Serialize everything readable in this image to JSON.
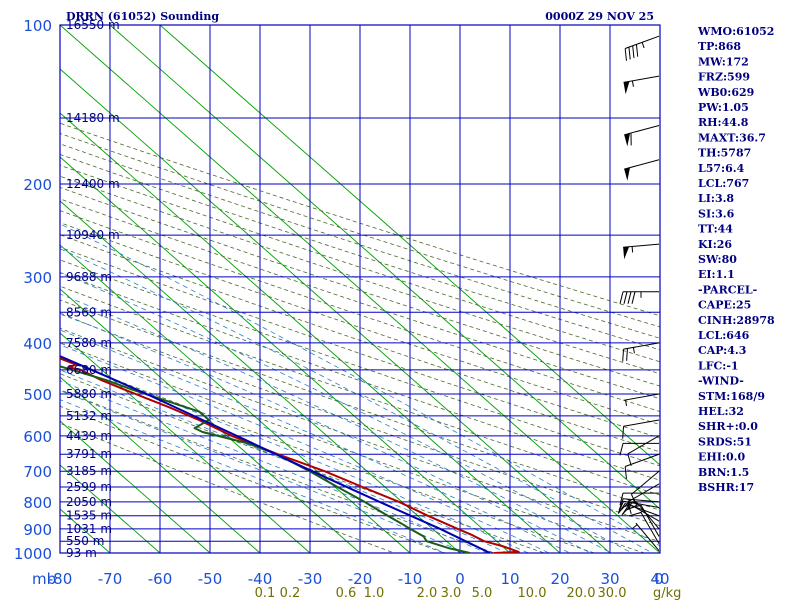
{
  "chart_data": {
    "type": "skew-t",
    "title": "DRRN (61052) Sounding",
    "timestamp": "0000Z 29 NOV 25",
    "pressure_levels": [
      100,
      200,
      300,
      400,
      500,
      600,
      700,
      800,
      900,
      1000
    ],
    "pressure_labels": [
      "100",
      "200",
      "300",
      "400",
      "500",
      "600",
      "700",
      "800",
      "900",
      "1000"
    ],
    "pressure_unit": "mb",
    "height_labels": [
      {
        "p": 100,
        "label": "16550 m"
      },
      {
        "p": 150,
        "label": "14180 m"
      },
      {
        "p": 200,
        "label": "12400 m"
      },
      {
        "p": 250,
        "label": "10940 m"
      },
      {
        "p": 300,
        "label": "9688 m"
      },
      {
        "p": 350,
        "label": "8569 m"
      },
      {
        "p": 400,
        "label": "7580 m"
      },
      {
        "p": 450,
        "label": "6680 m"
      },
      {
        "p": 500,
        "label": "5880 m"
      },
      {
        "p": 550,
        "label": "5132 m"
      },
      {
        "p": 600,
        "label": "4439 m"
      },
      {
        "p": 650,
        "label": "3791 m"
      },
      {
        "p": 700,
        "label": "3185 m"
      },
      {
        "p": 750,
        "label": "2599 m"
      },
      {
        "p": 800,
        "label": "2050 m"
      },
      {
        "p": 850,
        "label": "1535 m"
      },
      {
        "p": 900,
        "label": "1031 m"
      },
      {
        "p": 950,
        "label": "550 m"
      },
      {
        "p": 1000,
        "label": "93 m"
      }
    ],
    "temp_ticks": [
      -80,
      -70,
      -60,
      -50,
      -40,
      -30,
      -20,
      -10,
      0,
      10,
      20,
      30,
      40
    ],
    "temp_labels": [
      "-80",
      "-70",
      "-60",
      "-50",
      "-40",
      "-30",
      "-20",
      "-10",
      "0",
      "10",
      "20",
      "30",
      "40"
    ],
    "mixing_ratio_labels": [
      "0.1",
      "0.2",
      "0.6",
      "1.0",
      "2.0",
      "3.0",
      "5.0",
      "10.0",
      "20.0",
      "30.0"
    ],
    "mixing_ratio_unit": "g/kg",
    "wind_label_zero": "0",
    "series": [
      {
        "name": "temperature",
        "color": "#b00000",
        "points": [
          [
            1000,
            -3.2
          ],
          [
            995,
            2.0
          ],
          [
            970,
            0.0
          ],
          [
            950,
            -2.5
          ],
          [
            925,
            -3.5
          ],
          [
            900,
            -5.0
          ],
          [
            850,
            -8.0
          ],
          [
            800,
            -10.6
          ],
          [
            750,
            -14.5
          ],
          [
            700,
            -18.5
          ],
          [
            650,
            -24.0
          ],
          [
            600,
            -29.0
          ],
          [
            560,
            -32.0
          ],
          [
            530,
            -35.0
          ],
          [
            510,
            -37.5
          ],
          [
            490,
            -40.0
          ],
          [
            470,
            -42.5
          ],
          [
            450,
            -44.2
          ],
          [
            445,
            -46.0
          ],
          [
            440,
            -44.0
          ],
          [
            420,
            -47.0
          ],
          [
            405,
            -49.5
          ],
          [
            400,
            -50.0
          ],
          [
            380,
            -52.5
          ],
          [
            365,
            -53.8
          ],
          [
            350,
            -55.8
          ],
          [
            320,
            -59.0
          ],
          [
            300,
            -62.0
          ],
          [
            270,
            -66.5
          ],
          [
            250,
            -69.5
          ],
          [
            230,
            -72.5
          ],
          [
            210,
            -75.5
          ],
          [
            200,
            -77.3
          ],
          [
            180,
            -80.5
          ],
          [
            160,
            -84.0
          ],
          [
            150,
            -86.0
          ],
          [
            130,
            -88.0
          ],
          [
            115,
            -90.0
          ],
          [
            105,
            -91.5
          ],
          [
            100,
            -92.5
          ]
        ]
      },
      {
        "name": "dewpoint",
        "color": "#1a5c1a",
        "points": [
          [
            1000,
            -8.0
          ],
          [
            980,
            -11.0
          ],
          [
            950,
            -14.0
          ],
          [
            930,
            -13.5
          ],
          [
            900,
            -14.5
          ],
          [
            880,
            -15.0
          ],
          [
            850,
            -16.0
          ],
          [
            800,
            -17.5
          ],
          [
            750,
            -19.5
          ],
          [
            700,
            -21.5
          ],
          [
            650,
            -24.2
          ],
          [
            620,
            -27.5
          ],
          [
            590,
            -34.0
          ],
          [
            580,
            -34.7
          ],
          [
            560,
            -30.0
          ],
          [
            540,
            -30.0
          ],
          [
            510,
            -35.0
          ],
          [
            490,
            -38.5
          ],
          [
            470,
            -41.5
          ],
          [
            450,
            -46.0
          ],
          [
            430,
            -50.5
          ],
          [
            410,
            -54.0
          ],
          [
            390,
            -57.5
          ],
          [
            370,
            -61.0
          ],
          [
            355,
            -63.0
          ],
          [
            330,
            -65.0
          ],
          [
            320,
            -66.5
          ],
          [
            290,
            -70.0
          ],
          [
            270,
            -74.0
          ],
          [
            255,
            -75.0
          ],
          [
            240,
            -78.5
          ],
          [
            220,
            -81.5
          ],
          [
            205,
            -84.0
          ],
          [
            190,
            -86.5
          ],
          [
            170,
            -89.0
          ],
          [
            150,
            -92.5
          ],
          [
            120,
            -97.0
          ],
          [
            100,
            -101.0
          ]
        ]
      },
      {
        "name": "parcel",
        "color": "#0000b0",
        "points": [
          [
            1000,
            -4.0
          ],
          [
            900,
            -8.5
          ],
          [
            800,
            -14.5
          ],
          [
            700,
            -21.0
          ],
          [
            600,
            -28.0
          ],
          [
            500,
            -36.5
          ],
          [
            450,
            -42.0
          ],
          [
            400,
            -48.5
          ],
          [
            350,
            -55.5
          ],
          [
            300,
            -64.0
          ],
          [
            250,
            -73.0
          ],
          [
            200,
            -84.0
          ],
          [
            170,
            -91.0
          ],
          [
            150,
            -97.0
          ],
          [
            130,
            -102.0
          ]
        ]
      }
    ],
    "wind_barbs": [
      {
        "p": 990,
        "dir": 320,
        "spd": 5
      },
      {
        "p": 960,
        "dir": 330,
        "spd": 10
      },
      {
        "p": 930,
        "dir": 330,
        "spd": 15
      },
      {
        "p": 900,
        "dir": 320,
        "spd": 20
      },
      {
        "p": 870,
        "dir": 300,
        "spd": 20
      },
      {
        "p": 850,
        "dir": 290,
        "spd": 20
      },
      {
        "p": 820,
        "dir": 280,
        "spd": 15
      },
      {
        "p": 800,
        "dir": 275,
        "spd": 15
      },
      {
        "p": 770,
        "dir": 270,
        "spd": 10
      },
      {
        "p": 740,
        "dir": 240,
        "spd": 15
      },
      {
        "p": 700,
        "dir": 230,
        "spd": 10
      },
      {
        "p": 650,
        "dir": 250,
        "spd": 10
      },
      {
        "p": 620,
        "dir": 270,
        "spd": 10
      },
      {
        "p": 600,
        "dir": 240,
        "spd": 10
      },
      {
        "p": 560,
        "dir": 260,
        "spd": 10
      },
      {
        "p": 500,
        "dir": 260,
        "spd": 5
      },
      {
        "p": 400,
        "dir": 260,
        "spd": 25
      },
      {
        "p": 320,
        "dir": 270,
        "spd": 45
      },
      {
        "p": 260,
        "dir": 265,
        "spd": 55
      },
      {
        "p": 180,
        "dir": 255,
        "spd": 50
      },
      {
        "p": 155,
        "dir": 255,
        "spd": 60
      },
      {
        "p": 125,
        "dir": 260,
        "spd": 55
      },
      {
        "p": 105,
        "dir": 250,
        "spd": 45
      }
    ]
  },
  "indices": [
    "WMO:61052",
    "TP:868",
    "MW:172",
    "FRZ:599",
    "WB0:629",
    "PW:1.05",
    "RH:44.8",
    "MAXT:36.7",
    "TH:5787",
    "L57:6.4",
    "LCL:767",
    "LI:3.8",
    "SI:3.6",
    "TT:44",
    "KI:26",
    "SW:80",
    "EI:1.1",
    "-PARCEL-",
    "CAPE:25",
    "CINH:28978",
    "LCL:646",
    "CAP:4.3",
    "LFC:-1",
    "-WIND-",
    "STM:168/9",
    "HEL:32",
    "SHR+:0.0",
    "SRDS:51",
    "EHI:0.0",
    "BRN:1.5",
    "BSHR:17"
  ],
  "colors": {
    "grid": "#0000c0",
    "isotherm": "#00a000",
    "dry_adiabat": "#4a6a2a",
    "moist_adiabat": "#2a7fd0",
    "mixing_ratio_label": "#707000",
    "label": "#000080",
    "axis_label": "#1a4fd6"
  }
}
